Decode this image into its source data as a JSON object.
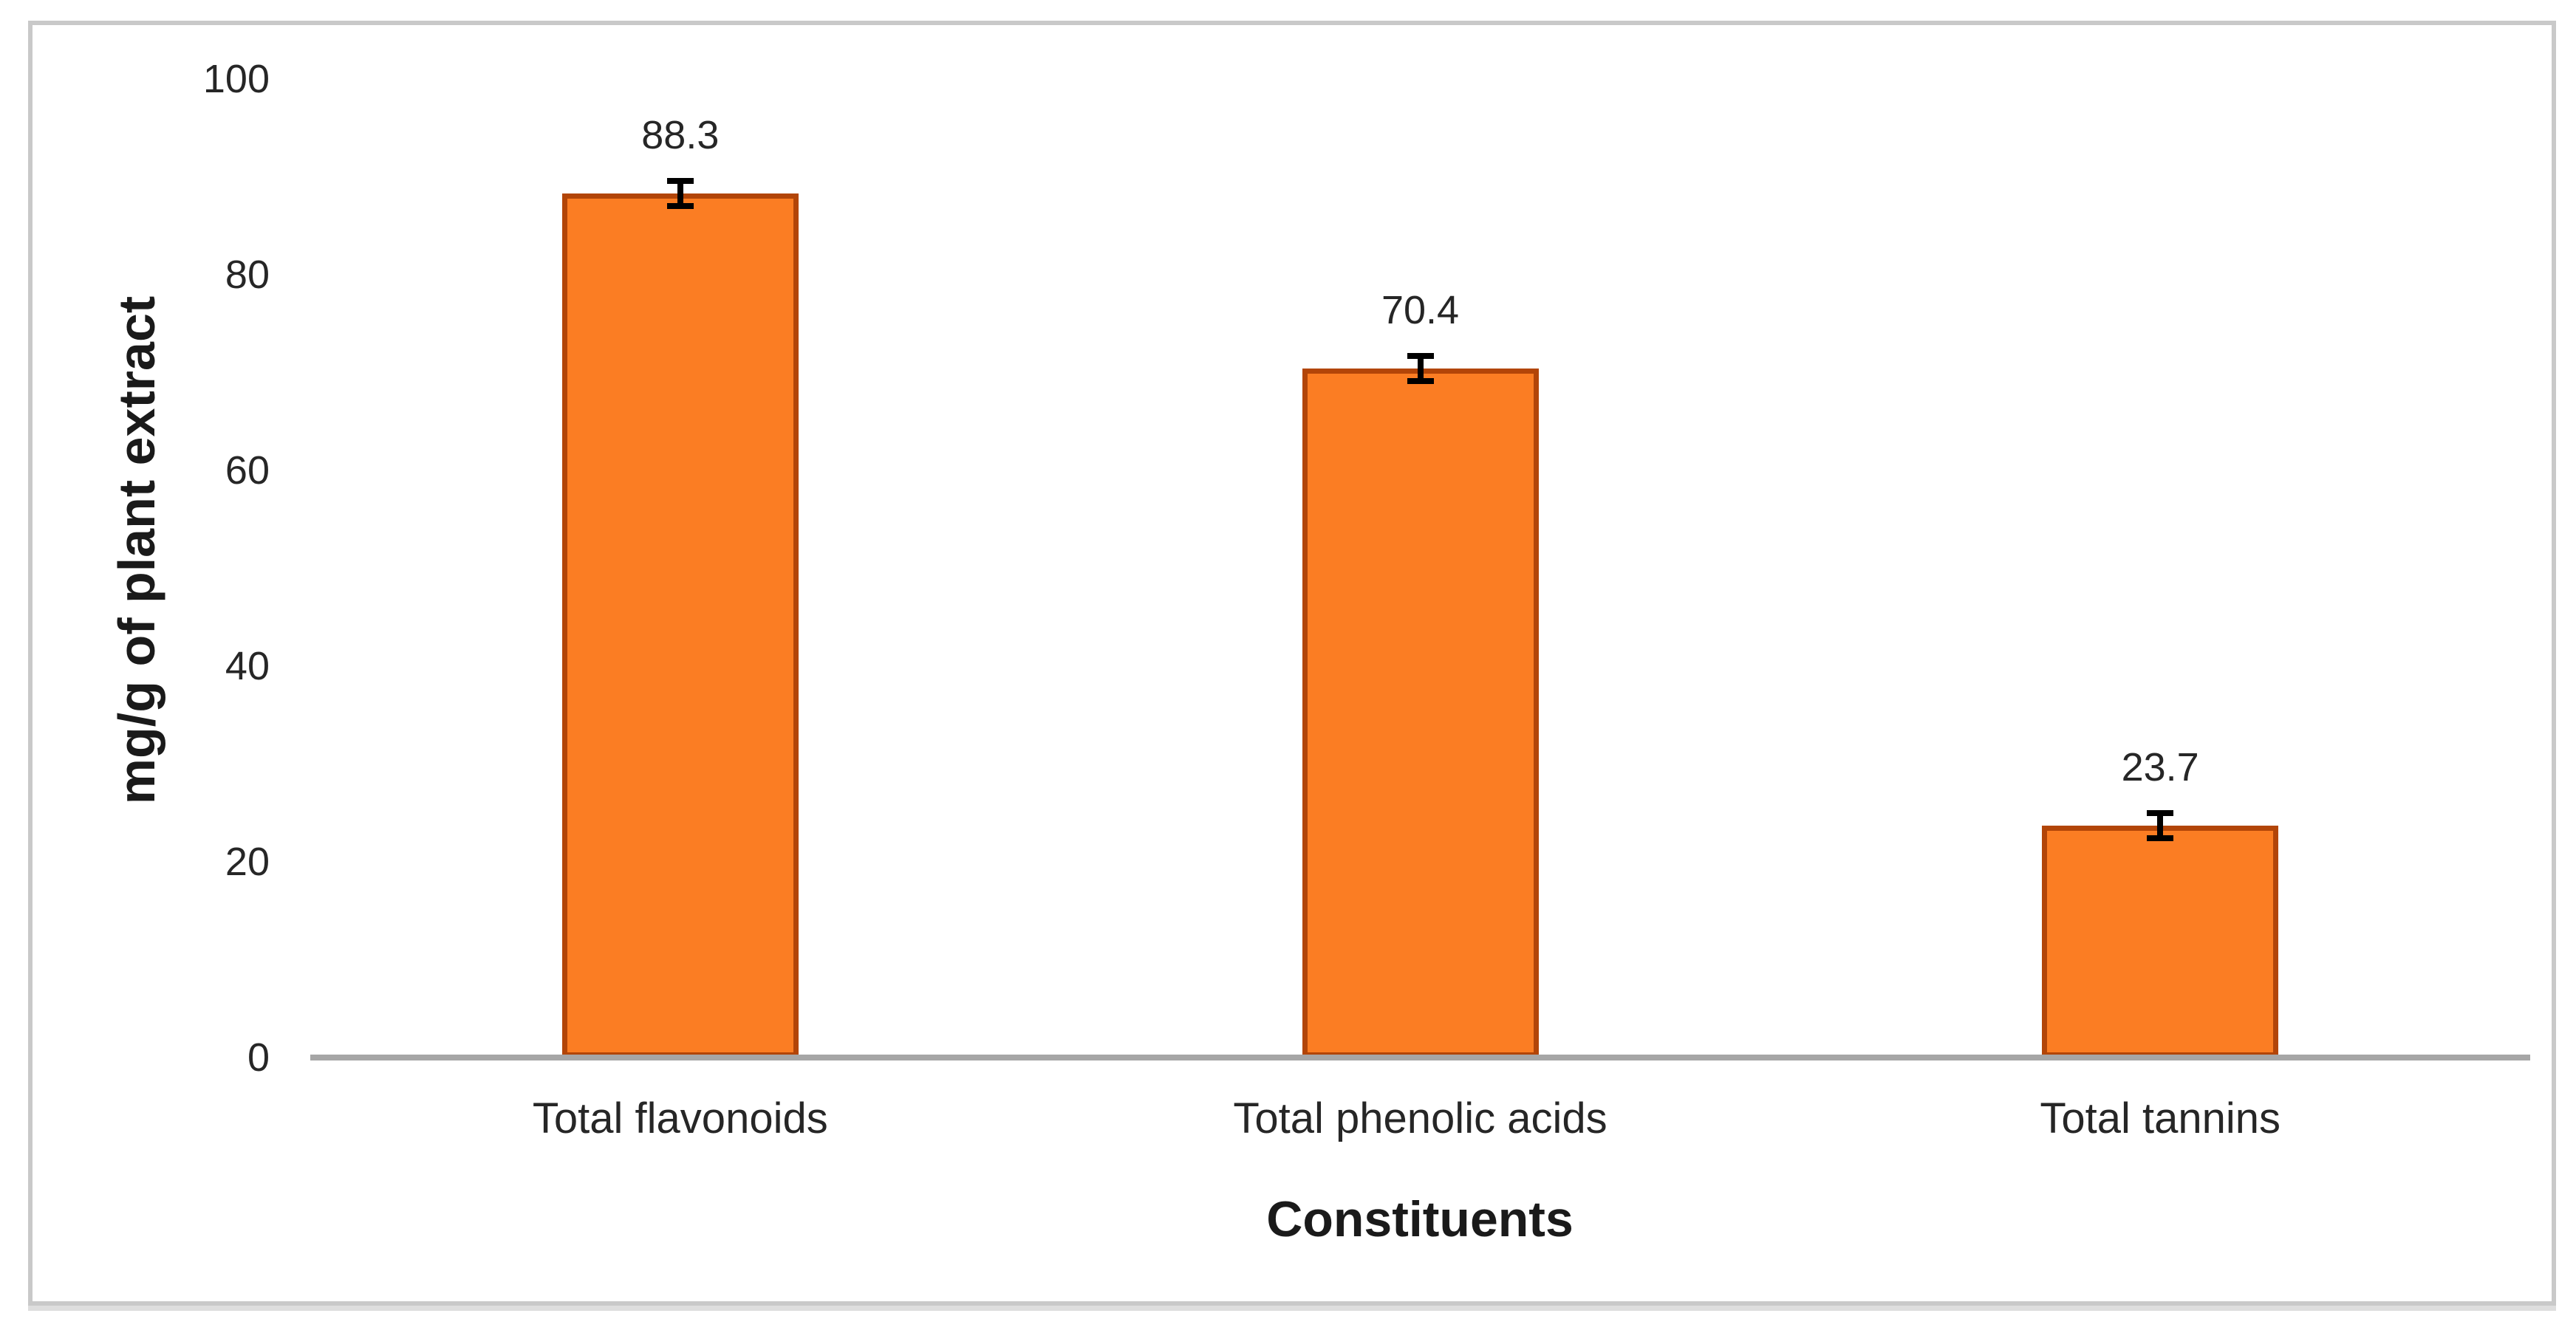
{
  "chart_data": {
    "type": "bar",
    "title": "",
    "xlabel": "Constituents",
    "ylabel": "mg/g of plant extract",
    "categories": [
      "Total flavonoids",
      "Total phenolic acids",
      "Total tannins"
    ],
    "values": [
      88.3,
      70.4,
      23.7
    ],
    "value_labels": [
      "88.3",
      "70.4",
      "23.7"
    ],
    "error_bars": [
      1.0,
      1.0,
      1.0
    ],
    "ylim": [
      0,
      100
    ],
    "yticks": [
      0,
      20,
      40,
      60,
      80,
      100
    ],
    "grid": "off",
    "legend": "none",
    "colors": {
      "bar_fill": "#fb7d23",
      "bar_border": "#b24508",
      "error_bar": "#000000",
      "axis_line": "#a6a6a6",
      "label_text": "#262626",
      "title_text": "#1a1a1a",
      "figure_border": "#c9c9c9",
      "background": "#ffffff"
    }
  }
}
